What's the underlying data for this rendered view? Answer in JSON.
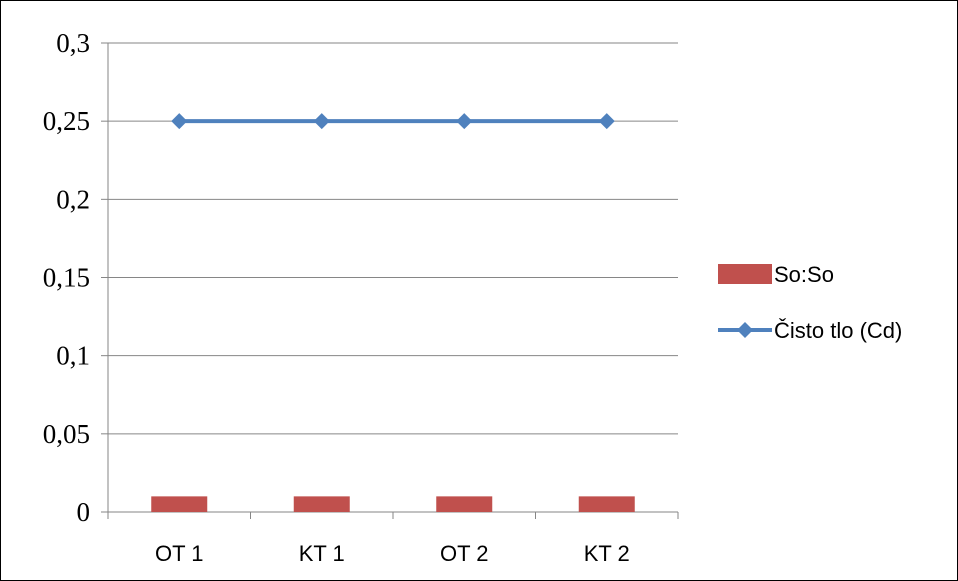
{
  "chart_data": {
    "type": "bar",
    "categories": [
      "OT 1",
      "KT 1",
      "OT 2",
      "KT 2"
    ],
    "series": [
      {
        "name": "So:So",
        "type": "bar",
        "values": [
          0.01,
          0.01,
          0.01,
          0.01
        ],
        "color": "#c0504d"
      },
      {
        "name": "Čisto tlo (Cd)",
        "type": "line",
        "marker": "diamond",
        "values": [
          0.25,
          0.25,
          0.25,
          0.25
        ],
        "color": "#4f81bd"
      }
    ],
    "ylim": [
      0,
      0.3
    ],
    "yticks": [
      "0",
      "0,05",
      "0,1",
      "0,15",
      "0,2",
      "0,25",
      "0,3"
    ],
    "ytick_values": [
      0,
      0.05,
      0.1,
      0.15,
      0.2,
      0.25,
      0.3
    ],
    "grid": true,
    "legend": "right",
    "title": "",
    "xlabel": "",
    "ylabel": ""
  }
}
